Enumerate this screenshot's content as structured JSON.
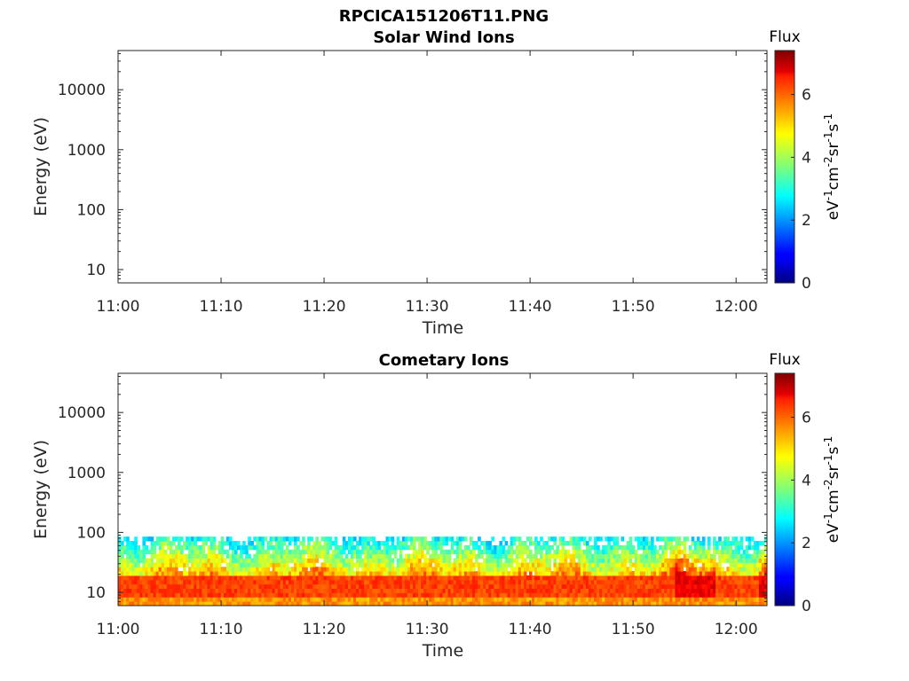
{
  "figure": {
    "title": "RPCICA151206T11.PNG"
  },
  "chart_data": [
    {
      "type": "heatmap",
      "title": "Solar Wind Ions",
      "xlabel": "Time",
      "ylabel": "Energy (eV)",
      "x_ticks": [
        "11:00",
        "11:10",
        "11:20",
        "11:30",
        "11:40",
        "11:50",
        "12:00"
      ],
      "x_range": [
        "11:00",
        "12:03"
      ],
      "y_scale": "log",
      "y_ticks": [
        "10",
        "100",
        "1000",
        "10000"
      ],
      "y_range": [
        6,
        45000
      ],
      "colorbar": {
        "title": "Flux",
        "label_base": "eV",
        "label_sup1": "-1",
        "label_cm": "cm",
        "label_sup2": "-2",
        "label_sr": "sr",
        "label_sup3": "-1",
        "label_s": "s",
        "label_sup4": "-1",
        "ticks": [
          "0",
          "2",
          "4",
          "6"
        ],
        "range": [
          0,
          7.4
        ],
        "colormap": "jet"
      },
      "data_present": false
    },
    {
      "type": "heatmap",
      "title": "Cometary Ions",
      "xlabel": "Time",
      "ylabel": "Energy (eV)",
      "x_ticks": [
        "11:00",
        "11:10",
        "11:20",
        "11:30",
        "11:40",
        "11:50",
        "12:00"
      ],
      "x_range": [
        "11:00",
        "12:03"
      ],
      "y_scale": "log",
      "y_ticks": [
        "10",
        "100",
        "1000",
        "10000"
      ],
      "y_range": [
        6,
        45000
      ],
      "colorbar": {
        "title": "Flux",
        "label_base": "eV",
        "label_sup1": "-1",
        "label_cm": "cm",
        "label_sup2": "-2",
        "label_sr": "sr",
        "label_sup3": "-1",
        "label_s": "s",
        "label_sup4": "-1",
        "ticks": [
          "0",
          "2",
          "4",
          "6"
        ],
        "range": [
          0,
          7.4
        ],
        "colormap": "jet"
      },
      "data_present": true,
      "energy_band_eV": [
        6,
        85
      ],
      "peak_flux_energy_eV": [
        8,
        18
      ],
      "typical_peak_flux": 6.3
    }
  ]
}
